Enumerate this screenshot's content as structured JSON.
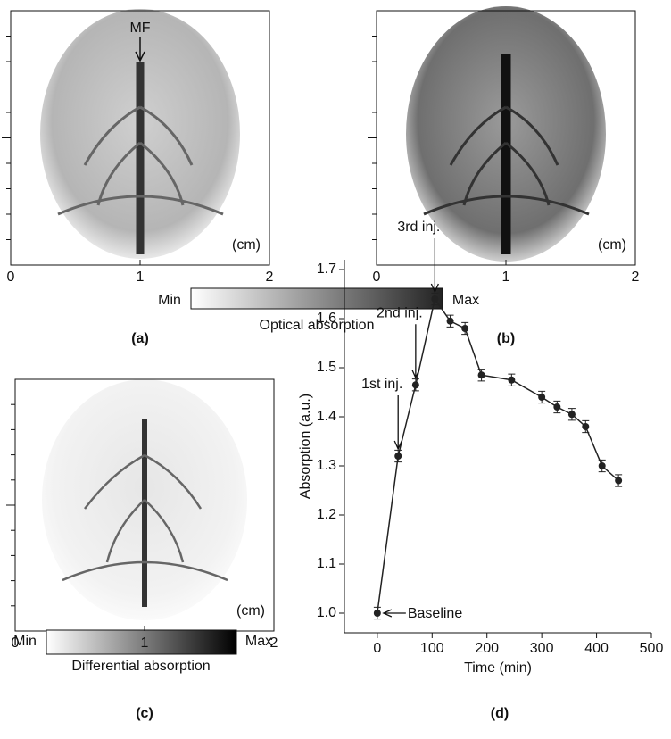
{
  "panels": [
    {
      "label": "(a)",
      "unit": "(cm)",
      "xlim": [
        0,
        2
      ],
      "xticks": [
        0,
        1,
        2
      ],
      "annotation": "MF"
    },
    {
      "label": "(b)",
      "unit": "(cm)",
      "xlim": [
        0,
        2
      ],
      "xticks": [
        0,
        1,
        2
      ]
    },
    {
      "label": "(c)",
      "unit": "(cm)",
      "xlim": [
        0,
        2
      ],
      "xticks": [
        0,
        1,
        2
      ]
    }
  ],
  "colorbars": [
    {
      "min": "Min",
      "max": "Max",
      "title": "Optical absorption"
    },
    {
      "min": "Min",
      "max": "Max",
      "title": "Differential absorption"
    }
  ],
  "chart_data": {
    "type": "line",
    "label": "(d)",
    "xlabel": "Time (min)",
    "ylabel": "Absorption (a.u.)",
    "x": [
      0,
      38,
      70,
      105,
      133,
      160,
      190,
      245,
      300,
      328,
      355,
      380,
      410,
      440
    ],
    "series": [
      {
        "color": "#222222",
        "values": [
          1.0,
          1.32,
          1.465,
          1.64,
          1.595,
          1.58,
          1.485,
          1.475,
          1.44,
          1.42,
          1.405,
          1.38,
          1.3,
          1.27
        ],
        "errors": [
          0.012,
          0.012,
          0.012,
          0.012,
          0.012,
          0.012,
          0.012,
          0.012,
          0.012,
          0.012,
          0.012,
          0.012,
          0.012,
          0.012
        ]
      }
    ],
    "xlim": [
      -60,
      500
    ],
    "xticks": [
      0,
      100,
      200,
      300,
      400,
      500
    ],
    "ylim": [
      0.96,
      1.72
    ],
    "yticks": [
      {
        "value": 1,
        "label": "1.0"
      },
      1.1,
      1.2,
      1.3,
      1.4,
      1.5,
      1.6,
      1.7
    ],
    "annotations": [
      "1st inj.",
      "2nd inj.",
      "3rd inj.",
      "Baseline"
    ]
  }
}
